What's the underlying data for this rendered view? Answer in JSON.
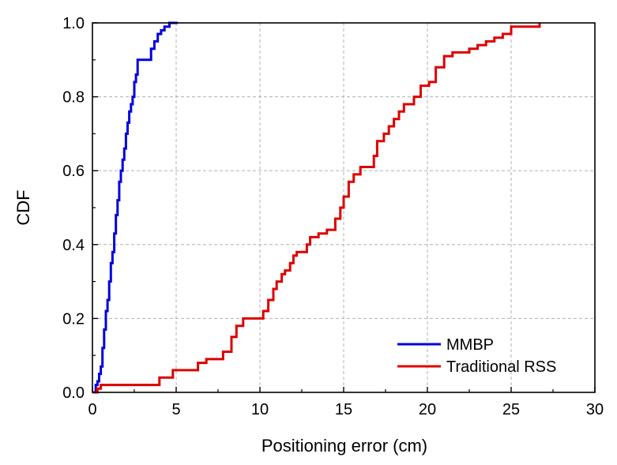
{
  "chart_data": {
    "type": "line",
    "step": true,
    "xlabel": "Positioning error (cm)",
    "ylabel": "CDF",
    "xlim": [
      0,
      30
    ],
    "ylim": [
      0,
      1.0
    ],
    "xticks": [
      "0",
      "5",
      "10",
      "15",
      "20",
      "25",
      "30"
    ],
    "yticks": [
      "0.0",
      "0.2",
      "0.4",
      "0.6",
      "0.8",
      "1.0"
    ],
    "grid": true,
    "grid_style": "dashed",
    "legend_position": "bottom-right",
    "series": [
      {
        "name": "MMBP",
        "color": "#0000dd",
        "x": [
          0,
          0.2,
          0.3,
          0.4,
          0.5,
          0.6,
          0.7,
          0.8,
          0.9,
          1.0,
          1.1,
          1.2,
          1.3,
          1.4,
          1.5,
          1.6,
          1.7,
          1.8,
          1.9,
          2.0,
          2.1,
          2.2,
          2.3,
          2.4,
          2.5,
          2.6,
          2.7,
          2.8,
          2.9,
          3.0,
          3.1,
          3.2,
          3.3,
          3.5,
          3.7,
          3.9,
          4.1,
          4.3,
          4.5,
          4.6,
          4.8,
          5.0,
          5.1
        ],
        "y": [
          0.0,
          0.02,
          0.03,
          0.05,
          0.07,
          0.12,
          0.17,
          0.22,
          0.25,
          0.3,
          0.35,
          0.38,
          0.43,
          0.48,
          0.52,
          0.57,
          0.6,
          0.63,
          0.66,
          0.7,
          0.73,
          0.76,
          0.78,
          0.8,
          0.84,
          0.86,
          0.9,
          0.9,
          0.9,
          0.9,
          0.9,
          0.9,
          0.9,
          0.93,
          0.95,
          0.97,
          0.98,
          0.99,
          0.99,
          1.0,
          1.0,
          1.0,
          1.0
        ]
      },
      {
        "name": "Traditional RSS",
        "color": "#dd0000",
        "x": [
          0,
          0.3,
          0.5,
          3.7,
          4.0,
          4.3,
          4.8,
          5.6,
          6.3,
          6.8,
          7.8,
          8.3,
          8.6,
          9.0,
          10.2,
          10.5,
          10.8,
          11.0,
          11.3,
          11.5,
          11.8,
          12.0,
          12.2,
          12.5,
          12.8,
          13.0,
          13.5,
          14.0,
          14.5,
          14.8,
          15.0,
          15.3,
          15.6,
          16.0,
          16.8,
          17.0,
          17.4,
          17.7,
          18.0,
          18.3,
          18.6,
          19.2,
          19.6,
          20.1,
          20.5,
          21.0,
          21.5,
          22.5,
          23.0,
          23.5,
          24.0,
          24.5,
          25.0,
          25.5,
          26.0,
          26.6,
          26.7
        ],
        "y": [
          0.0,
          0.01,
          0.02,
          0.02,
          0.04,
          0.04,
          0.06,
          0.06,
          0.08,
          0.09,
          0.11,
          0.15,
          0.18,
          0.2,
          0.22,
          0.25,
          0.28,
          0.3,
          0.32,
          0.33,
          0.35,
          0.37,
          0.38,
          0.38,
          0.4,
          0.42,
          0.43,
          0.44,
          0.47,
          0.5,
          0.53,
          0.57,
          0.59,
          0.61,
          0.64,
          0.68,
          0.7,
          0.72,
          0.74,
          0.76,
          0.78,
          0.8,
          0.83,
          0.84,
          0.88,
          0.91,
          0.92,
          0.93,
          0.94,
          0.95,
          0.96,
          0.97,
          0.99,
          0.99,
          0.99,
          0.99,
          1.0
        ]
      }
    ]
  }
}
